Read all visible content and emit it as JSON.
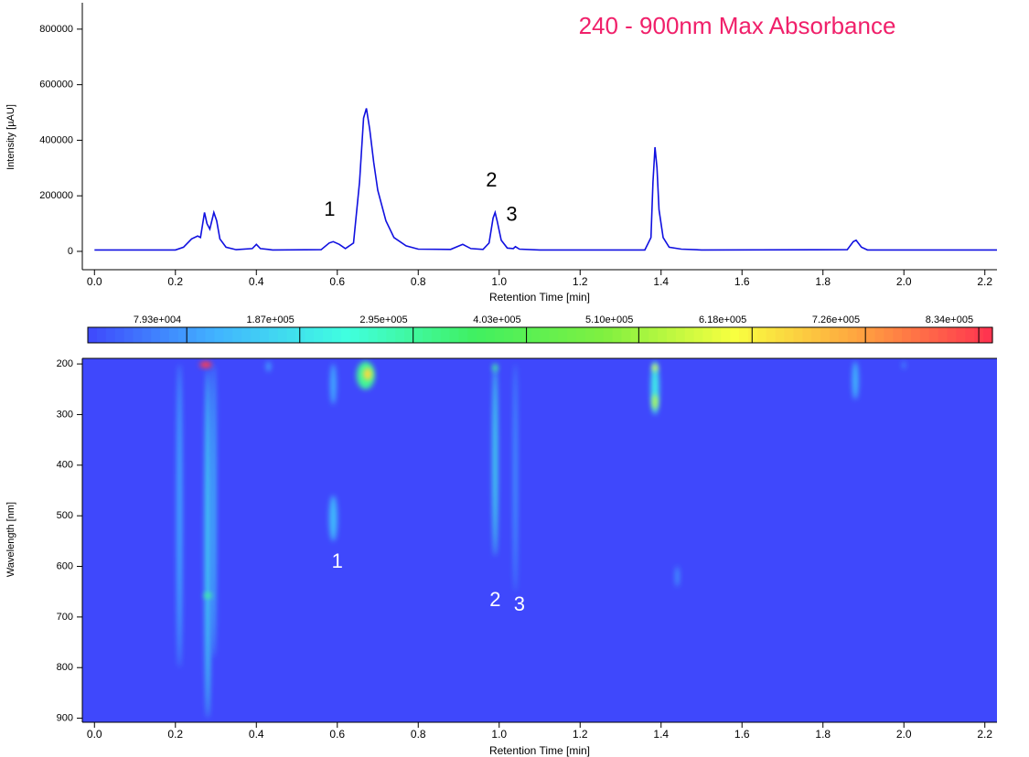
{
  "chart_data": [
    {
      "type": "line",
      "title": "240  -  900nm Max Absorbance",
      "x_label": "Retention Time [min]",
      "y_label": "Intensity [µAU]",
      "xlim": [
        -0.03,
        2.23
      ],
      "xticks": [
        {
          "value": 0,
          "label": "0.0"
        },
        0.2,
        0.4,
        0.6,
        0.8,
        {
          "value": 1,
          "label": "1.0"
        },
        1.2,
        1.4,
        1.6,
        1.8,
        {
          "value": 2,
          "label": "2.0"
        },
        2.2
      ],
      "ylim": [
        -66000,
        895000
      ],
      "yticks": [
        0,
        200000,
        400000,
        600000,
        800000
      ],
      "series": [
        {
          "color": "#1010e0",
          "x": [
            0.0,
            0.2,
            0.22,
            0.24,
            0.255,
            0.262,
            0.272,
            0.278,
            0.285,
            0.295,
            0.302,
            0.31,
            0.325,
            0.35,
            0.39,
            0.4,
            0.41,
            0.43,
            0.44,
            0.56,
            0.58,
            0.59,
            0.605,
            0.62,
            0.64,
            0.655,
            0.665,
            0.672,
            0.68,
            0.69,
            0.7,
            0.72,
            0.74,
            0.77,
            0.8,
            0.88,
            0.91,
            0.93,
            0.96,
            0.975,
            0.985,
            0.99,
            0.995,
            1.005,
            1.02,
            1.035,
            1.04,
            1.05,
            1.1,
            1.36,
            1.375,
            1.38,
            1.385,
            1.39,
            1.395,
            1.405,
            1.42,
            1.45,
            1.5,
            1.86,
            1.875,
            1.882,
            1.895,
            1.91,
            2.23
          ],
          "values": [
            5000,
            5000,
            15000,
            45000,
            55000,
            50000,
            140000,
            100000,
            80000,
            140000,
            110000,
            45000,
            15000,
            6000,
            10000,
            25000,
            10000,
            7000,
            5000,
            6000,
            30000,
            35000,
            25000,
            10000,
            30000,
            250000,
            480000,
            515000,
            440000,
            320000,
            220000,
            110000,
            50000,
            20000,
            8000,
            7000,
            25000,
            10000,
            7000,
            30000,
            120000,
            140000,
            110000,
            40000,
            12000,
            10000,
            17000,
            8000,
            5000,
            5000,
            50000,
            250000,
            375000,
            300000,
            150000,
            50000,
            15000,
            8000,
            5000,
            6000,
            35000,
            40000,
            15000,
            5000,
            5000
          ]
        }
      ],
      "annotations": [
        {
          "text": "1",
          "x": 0.59
        },
        {
          "text": "2",
          "x": 0.99
        },
        {
          "text": "3",
          "x": 1.04
        }
      ]
    },
    {
      "type": "heatmap",
      "x_label": "Retention Time [min]",
      "y_label": "Wavelength [nm]",
      "xlim": [
        -0.03,
        2.23
      ],
      "xticks": [
        {
          "value": 0,
          "label": "0.0"
        },
        0.2,
        0.4,
        0.6,
        0.8,
        {
          "value": 1,
          "label": "1.0"
        },
        1.2,
        1.4,
        1.6,
        1.8,
        {
          "value": 2,
          "label": "2.0"
        },
        2.2
      ],
      "ylim": [
        189,
        908
      ],
      "yticks": [
        200,
        300,
        400,
        500,
        600,
        700,
        800,
        900
      ],
      "clim": [
        -15000,
        847000
      ],
      "cticks": [
        {
          "value": 79300,
          "label": "7.93e+004"
        },
        {
          "value": 187000,
          "label": "1.87e+005"
        },
        {
          "value": 295000,
          "label": "2.95e+005"
        },
        {
          "value": 403000,
          "label": "4.03e+005"
        },
        {
          "value": 510000,
          "label": "5.10e+005"
        },
        {
          "value": 618000,
          "label": "6.18e+005"
        },
        {
          "value": 726000,
          "label": "7.26e+005"
        },
        {
          "value": 834000,
          "label": "8.34e+005"
        }
      ],
      "colormap": [
        "#3f48fc",
        "#41b4ff",
        "#40ffe0",
        "#40f060",
        "#80f040",
        "#f8ff40",
        "#ffa040",
        "#ff3050"
      ],
      "spots": [
        {
          "x": 0.28,
          "wl": [
            210,
            900
          ],
          "value": 150000,
          "width": 0.015
        },
        {
          "x": 0.21,
          "wl": [
            200,
            800
          ],
          "value": 110000,
          "width": 0.012
        },
        {
          "x": 0.295,
          "wl": [
            200,
            780
          ],
          "value": 130000,
          "width": 0.01
        },
        {
          "x": 0.28,
          "wl": [
            653,
            662
          ],
          "value": 300000,
          "width": 0.02
        },
        {
          "x": 0.275,
          "wl": [
            195,
            208
          ],
          "value": 834000,
          "width": 0.03
        },
        {
          "x": 0.43,
          "wl": [
            195,
            215
          ],
          "value": 110000,
          "width": 0.01
        },
        {
          "x": 0.59,
          "wl": [
            460,
            550
          ],
          "value": 120000,
          "width": 0.02
        },
        {
          "x": 0.59,
          "wl": [
            200,
            280
          ],
          "value": 100000,
          "width": 0.015
        },
        {
          "x": 0.67,
          "wl": [
            195,
            250
          ],
          "value": 300000,
          "width": 0.045
        },
        {
          "x": 0.675,
          "wl": [
            208,
            232
          ],
          "value": 650000,
          "width": 0.022
        },
        {
          "x": 0.99,
          "wl": [
            200,
            580
          ],
          "value": 180000,
          "width": 0.012
        },
        {
          "x": 0.99,
          "wl": [
            200,
            215
          ],
          "value": 300000,
          "width": 0.012
        },
        {
          "x": 1.04,
          "wl": [
            200,
            650
          ],
          "value": 100000,
          "width": 0.008
        },
        {
          "x": 1.385,
          "wl": [
            195,
            300
          ],
          "value": 200000,
          "width": 0.02
        },
        {
          "x": 1.385,
          "wl": [
            200,
            215
          ],
          "value": 600000,
          "width": 0.012
        },
        {
          "x": 1.385,
          "wl": [
            260,
            290
          ],
          "value": 550000,
          "width": 0.012
        },
        {
          "x": 1.44,
          "wl": [
            600,
            640
          ],
          "value": 100000,
          "width": 0.008
        },
        {
          "x": 1.88,
          "wl": [
            195,
            270
          ],
          "value": 120000,
          "width": 0.015
        },
        {
          "x": 2.0,
          "wl": [
            195,
            210
          ],
          "value": 100000,
          "width": 0.006
        }
      ],
      "annotations": [
        {
          "text": "1",
          "x": 0.6,
          "wavelength": 592
        },
        {
          "text": "2",
          "x": 0.99,
          "wavelength": 668
        },
        {
          "text": "3",
          "x": 1.05,
          "wavelength": 677
        }
      ]
    }
  ]
}
